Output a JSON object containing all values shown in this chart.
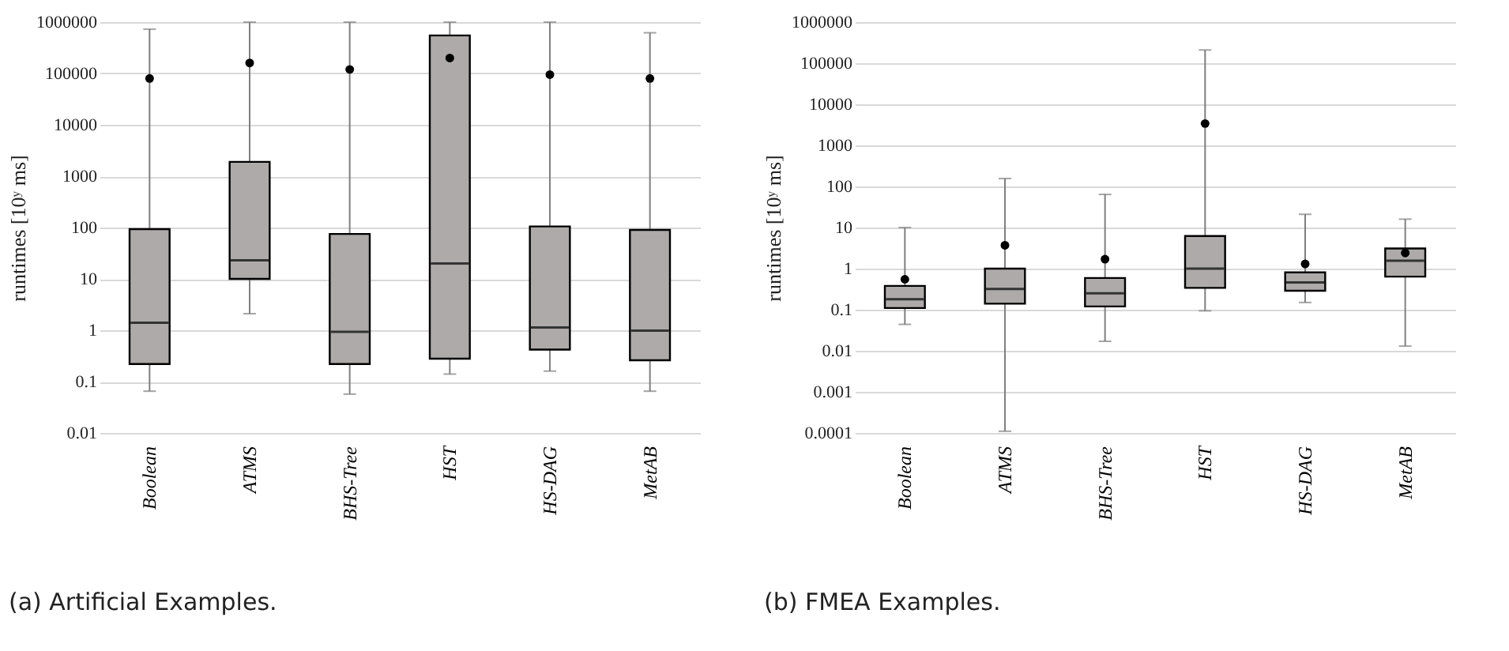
{
  "chart_data": [
    {
      "type": "box",
      "title": "(a) Artificial Examples.",
      "ylabel": "runtimes [10ʸ ms]",
      "categories": [
        "Boolean",
        "ATMS",
        "BHS-Tree",
        "HST",
        "HS-DAG",
        "MetAB"
      ],
      "log": true,
      "grid": "y",
      "ylim": [
        0.01,
        1000000
      ],
      "yticks": [
        0.01,
        0.1,
        1,
        10,
        100,
        1000,
        10000,
        100000,
        1000000
      ],
      "series": [
        {
          "color": "#aeaaaa",
          "boxes": [
            {
              "low": 0.065,
              "q1": 0.22,
              "median": 1.4,
              "q3": 93,
              "high": 730000,
              "mean": 80000
            },
            {
              "low": 2.1,
              "q1": 10,
              "median": 23,
              "q3": 1900,
              "high": 1000000,
              "mean": 160000
            },
            {
              "low": 0.057,
              "q1": 0.22,
              "median": 0.93,
              "q3": 75,
              "high": 1000000,
              "mean": 120000
            },
            {
              "low": 0.14,
              "q1": 0.28,
              "median": 20,
              "q3": 550000,
              "high": 1000000,
              "mean": 200000
            },
            {
              "low": 0.16,
              "q1": 0.42,
              "median": 1.13,
              "q3": 105,
              "high": 1000000,
              "mean": 95000
            },
            {
              "low": 0.065,
              "q1": 0.26,
              "median": 0.98,
              "q3": 90,
              "high": 620000,
              "mean": 80000
            }
          ]
        }
      ]
    },
    {
      "type": "box",
      "title": "(b) FMEA Examples.",
      "ylabel": "runtimes [10ʸ ms]",
      "categories": [
        "Boolean",
        "ATMS",
        "BHS-Tree",
        "HST",
        "HS-DAG",
        "MetAB"
      ],
      "log": true,
      "grid": "y",
      "ylim": [
        0.0001,
        1000000
      ],
      "yticks": [
        0.0001,
        0.001,
        0.01,
        0.1,
        1,
        10,
        100,
        1000,
        10000,
        100000,
        1000000
      ],
      "series": [
        {
          "color": "#aeaaaa",
          "boxes": [
            {
              "low": 0.044,
              "q1": 0.11,
              "median": 0.18,
              "q3": 0.38,
              "high": 10,
              "mean": 0.55
            },
            {
              "low": 0.00011,
              "q1": 0.14,
              "median": 0.32,
              "q3": 1,
              "high": 156,
              "mean": 3.7
            },
            {
              "low": 0.017,
              "q1": 0.12,
              "median": 0.25,
              "q3": 0.59,
              "high": 64,
              "mean": 1.7
            },
            {
              "low": 0.094,
              "q1": 0.34,
              "median": 1,
              "q3": 6.2,
              "high": 210000,
              "mean": 3400
            },
            {
              "low": 0.15,
              "q1": 0.29,
              "median": 0.46,
              "q3": 0.81,
              "high": 21,
              "mean": 1.3
            },
            {
              "low": 0.013,
              "q1": 0.64,
              "median": 1.56,
              "q3": 3.1,
              "high": 16,
              "mean": 2.4
            }
          ]
        }
      ]
    }
  ]
}
